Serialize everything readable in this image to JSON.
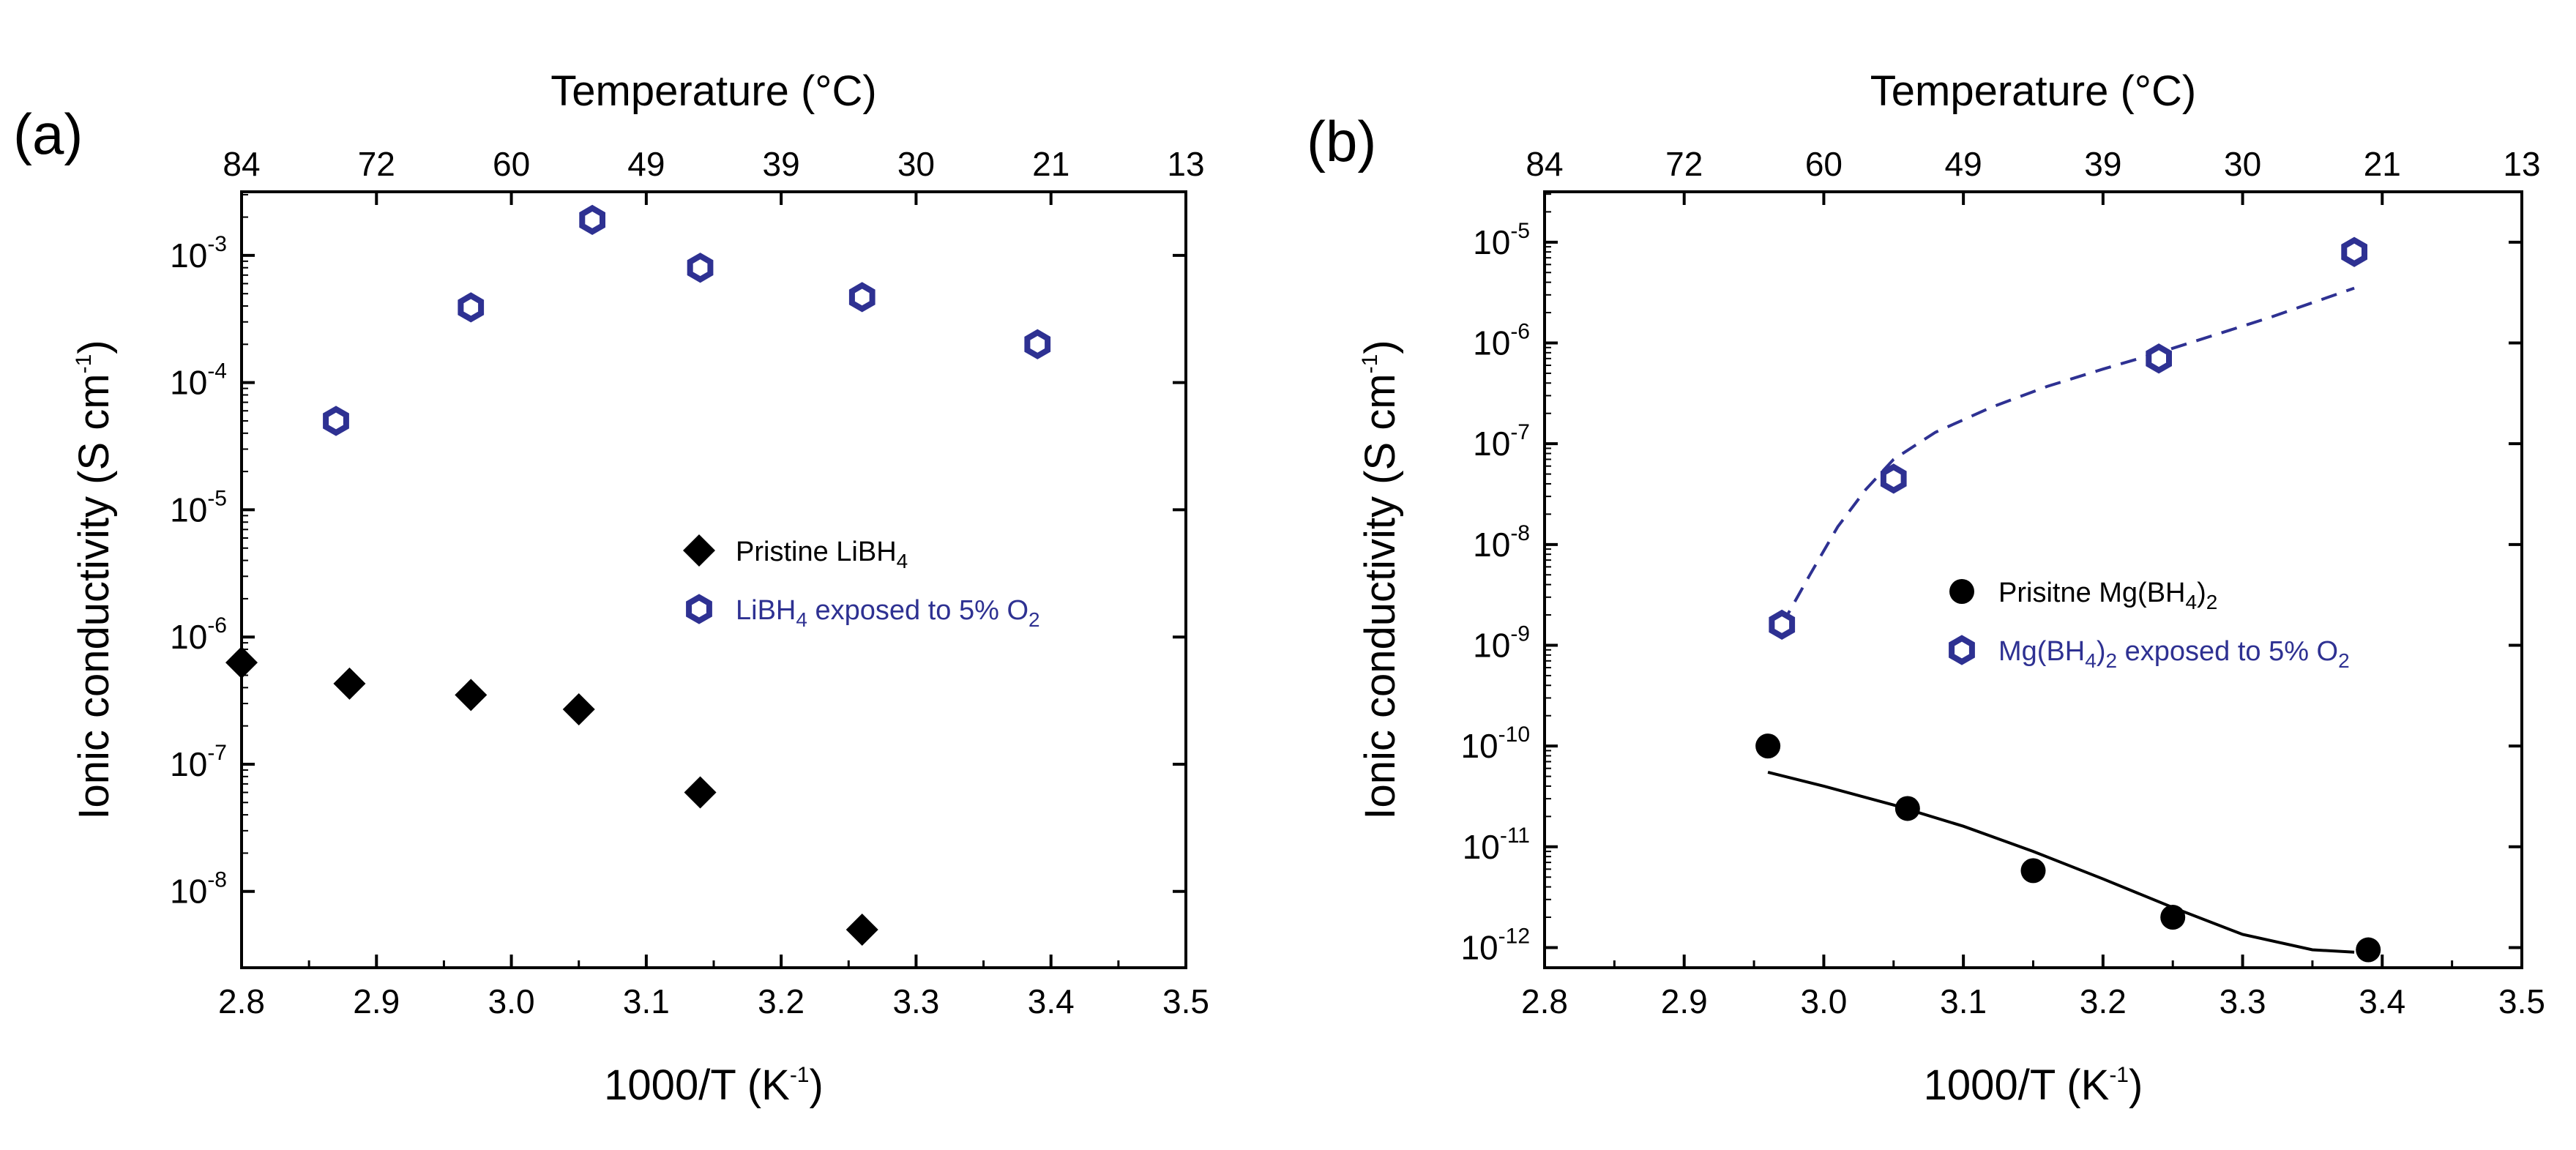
{
  "chart_data": [
    {
      "panel": "(a)",
      "type": "scatter",
      "xlabel": "1000/T (K",
      "xlabel_sup": "-1",
      "xlabel_end": ")",
      "x_ticks": [
        "2.8",
        "2.9",
        "3.0",
        "3.1",
        "3.2",
        "3.3",
        "3.4",
        "3.5"
      ],
      "xlim": [
        2.8,
        3.5
      ],
      "top_xlabel": "Temperature (°C)",
      "top_ticks": [
        {
          "x": 2.8,
          "label": "84"
        },
        {
          "x": 2.9,
          "label": "72"
        },
        {
          "x": 3.0,
          "label": "60"
        },
        {
          "x": 3.1,
          "label": "49"
        },
        {
          "x": 3.2,
          "label": "39"
        },
        {
          "x": 3.3,
          "label": "30"
        },
        {
          "x": 3.4,
          "label": "21"
        },
        {
          "x": 3.5,
          "label": "13"
        }
      ],
      "ylabel": "Ionic conductivity (S cm",
      "ylabel_sup": "-1",
      "ylabel_end": ")",
      "yscale": "log",
      "ylim_exp": [
        -8.6,
        -2.5
      ],
      "y_ticks": [
        {
          "exp": -3,
          "base": "10",
          "sup": "-3"
        },
        {
          "exp": -4,
          "base": "10",
          "sup": "-4"
        },
        {
          "exp": -5,
          "base": "10",
          "sup": "-5"
        },
        {
          "exp": -6,
          "base": "10",
          "sup": "-6"
        },
        {
          "exp": -7,
          "base": "10",
          "sup": "-7"
        },
        {
          "exp": -8,
          "base": "10",
          "sup": "-8"
        }
      ],
      "legend": {
        "position": "right-middle"
      },
      "series": [
        {
          "name": "Pristine LiBH",
          "name_sub": "4",
          "name_rest": "",
          "marker": "diamond",
          "color": "#000000",
          "x": [
            2.8,
            2.88,
            2.97,
            3.05,
            3.14,
            3.26
          ],
          "y": [
            6.3e-07,
            4.3e-07,
            3.5e-07,
            2.7e-07,
            6e-08,
            5e-09
          ]
        },
        {
          "name": "LiBH",
          "name_sub": "4",
          "name_rest": " exposed to 5% O",
          "name_sub2": "2",
          "marker": "hollow-hexagon",
          "color": "#2e3192",
          "x": [
            2.87,
            2.97,
            3.06,
            3.14,
            3.26,
            3.39
          ],
          "y": [
            5e-05,
            0.00039,
            0.0019,
            0.0008,
            0.00047,
            0.0002
          ]
        }
      ]
    },
    {
      "panel": "(b)",
      "type": "scatter",
      "xlabel": "1000/T (K",
      "xlabel_sup": "-1",
      "xlabel_end": ")",
      "x_ticks": [
        "2.8",
        "2.9",
        "3.0",
        "3.1",
        "3.2",
        "3.3",
        "3.4",
        "3.5"
      ],
      "xlim": [
        2.8,
        3.5
      ],
      "top_xlabel": "Temperature (°C)",
      "top_ticks": [
        {
          "x": 2.8,
          "label": "84"
        },
        {
          "x": 2.9,
          "label": "72"
        },
        {
          "x": 3.0,
          "label": "60"
        },
        {
          "x": 3.1,
          "label": "49"
        },
        {
          "x": 3.2,
          "label": "39"
        },
        {
          "x": 3.3,
          "label": "30"
        },
        {
          "x": 3.4,
          "label": "21"
        },
        {
          "x": 3.5,
          "label": "13"
        }
      ],
      "ylabel": "Ionic conductivity (S cm",
      "ylabel_sup": "-1",
      "ylabel_end": ")",
      "yscale": "log",
      "ylim_exp": [
        -12.2,
        -4.5
      ],
      "y_ticks": [
        {
          "exp": -5,
          "base": "10",
          "sup": "-5"
        },
        {
          "exp": -6,
          "base": "10",
          "sup": "-6"
        },
        {
          "exp": -7,
          "base": "10",
          "sup": "-7"
        },
        {
          "exp": -8,
          "base": "10",
          "sup": "-8"
        },
        {
          "exp": -9,
          "base": "10",
          "sup": "-9"
        },
        {
          "exp": -10,
          "base": "10",
          "sup": "-10"
        },
        {
          "exp": -11,
          "base": "10",
          "sup": "-11"
        },
        {
          "exp": -12,
          "base": "10",
          "sup": "-12"
        }
      ],
      "legend": {
        "position": "right-middle"
      },
      "series": [
        {
          "name": "Prisitne Mg(BH",
          "name_sub": "4",
          "name_rest": ")",
          "name_sub2": "2",
          "marker": "circle",
          "color": "#000000",
          "x": [
            2.96,
            3.06,
            3.15,
            3.25,
            3.39
          ],
          "y": [
            1e-10,
            2.4e-11,
            5.8e-12,
            2e-12,
            9.5e-13
          ],
          "fit": {
            "style": "solid",
            "x": [
              2.96,
              3.0,
              3.05,
              3.1,
              3.15,
              3.2,
              3.25,
              3.3,
              3.35,
              3.38
            ],
            "y": [
              5.5e-11,
              4e-11,
              2.6e-11,
              1.6e-11,
              9e-12,
              4.8e-12,
              2.5e-12,
              1.35e-12,
              9.5e-13,
              9e-13
            ]
          }
        },
        {
          "name": "Mg(BH",
          "name_sub": "4",
          "name_rest": ")",
          "name_sub2": "2",
          "name_rest2": " exposed to 5% O",
          "name_sub3": "2",
          "marker": "hollow-hexagon",
          "color": "#2e3192",
          "x": [
            2.97,
            3.05,
            3.24,
            3.38
          ],
          "y": [
            1.6e-09,
            4.5e-08,
            7e-07,
            8e-06
          ],
          "fit": {
            "style": "dashed",
            "x": [
              2.97,
              2.99,
              3.01,
              3.03,
              3.05,
              3.08,
              3.12,
              3.16,
              3.2,
              3.24,
              3.28,
              3.32,
              3.36,
              3.38
            ],
            "y": [
              1.6e-09,
              5e-09,
              1.5e-08,
              3.5e-08,
              7e-08,
              1.3e-07,
              2.3e-07,
              3.7e-07,
              5.5e-07,
              8e-07,
              1.2e-06,
              1.8e-06,
              2.8e-06,
              3.5e-06
            ]
          }
        }
      ]
    }
  ]
}
